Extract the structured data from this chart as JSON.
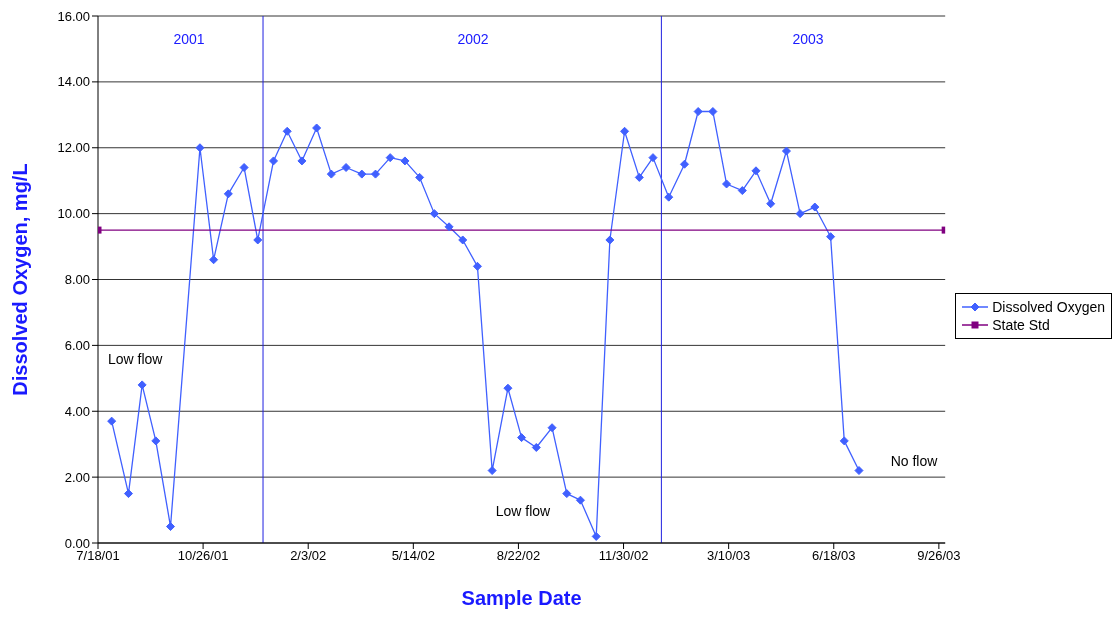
{
  "chart_data": {
    "type": "line",
    "xlabel": "Sample Date",
    "ylabel": "Dissolved Oxygen, mg/L",
    "series": [
      {
        "name": "Dissolved Oxygen",
        "color": "#4060ff",
        "marker": "diamond",
        "x": [
          "2001-07-31",
          "2001-08-16",
          "2001-08-29",
          "2001-09-11",
          "2001-09-25",
          "2001-10-23",
          "2001-11-05",
          "2001-11-19",
          "2001-12-04",
          "2001-12-17",
          "2002-01-01",
          "2002-01-14",
          "2002-01-28",
          "2002-02-11",
          "2002-02-25",
          "2002-03-11",
          "2002-03-26",
          "2002-04-08",
          "2002-04-22",
          "2002-05-06",
          "2002-05-20",
          "2002-06-03",
          "2002-06-17",
          "2002-06-30",
          "2002-07-14",
          "2002-07-28",
          "2002-08-12",
          "2002-08-25",
          "2002-09-08",
          "2002-09-23",
          "2002-10-07",
          "2002-10-20",
          "2002-11-04",
          "2002-11-17",
          "2002-12-01",
          "2002-12-15",
          "2002-12-28",
          "2003-01-12",
          "2003-01-27",
          "2003-02-09",
          "2003-02-23",
          "2003-03-08",
          "2003-03-23",
          "2003-04-05",
          "2003-04-19",
          "2003-05-04",
          "2003-05-17",
          "2003-05-31",
          "2003-06-15",
          "2003-06-28",
          "2003-07-12"
        ],
        "values": [
          3.7,
          1.5,
          4.8,
          3.1,
          0.5,
          12.0,
          8.6,
          10.6,
          11.4,
          9.2,
          11.6,
          12.5,
          11.6,
          12.6,
          11.2,
          11.4,
          11.2,
          11.2,
          11.7,
          11.6,
          11.1,
          10.0,
          9.6,
          9.2,
          8.4,
          2.2,
          4.7,
          3.2,
          2.9,
          3.5,
          1.5,
          1.3,
          0.2,
          9.2,
          12.5,
          11.1,
          11.7,
          10.5,
          11.5,
          13.1,
          13.1,
          10.9,
          10.7,
          11.3,
          10.3,
          11.9,
          10.0,
          10.2,
          9.3,
          3.1,
          2.2
        ]
      },
      {
        "name": "State Std",
        "color": "#800080",
        "marker": "square",
        "x": [
          "2001-07-18",
          "2003-10-02"
        ],
        "values": [
          9.5,
          9.5
        ]
      }
    ],
    "xlim": [
      "2001-07-18",
      "2003-10-02"
    ],
    "xticks": [
      {
        "value": "2001-07-18",
        "label": "7/18/01"
      },
      {
        "value": "2001-10-26",
        "label": "10/26/01"
      },
      {
        "value": "2002-02-03",
        "label": "2/3/02"
      },
      {
        "value": "2002-05-14",
        "label": "5/14/02"
      },
      {
        "value": "2002-08-22",
        "label": "8/22/02"
      },
      {
        "value": "2002-11-30",
        "label": "11/30/02"
      },
      {
        "value": "2003-03-10",
        "label": "3/10/03"
      },
      {
        "value": "2003-06-18",
        "label": "6/18/03"
      },
      {
        "value": "2003-09-26",
        "label": "9/26/03"
      }
    ],
    "ylim": [
      0,
      16
    ],
    "yticks": [
      {
        "value": 0,
        "label": "0.00"
      },
      {
        "value": 2,
        "label": "2.00"
      },
      {
        "value": 4,
        "label": "4.00"
      },
      {
        "value": 6,
        "label": "6.00"
      },
      {
        "value": 8,
        "label": "8.00"
      },
      {
        "value": 10,
        "label": "10.00"
      },
      {
        "value": 12,
        "label": "12.00"
      },
      {
        "value": 14,
        "label": "14.00"
      },
      {
        "value": 16,
        "label": "16.00"
      }
    ],
    "ref_lines": [
      {
        "axis": "x",
        "value": "2001-12-22",
        "color": "#2020e0"
      },
      {
        "axis": "x",
        "value": "2003-01-05",
        "color": "#2020e0"
      }
    ],
    "annotations": [
      "2001",
      "2002",
      "2003",
      "Low flow",
      "Low flow",
      "No flow"
    ],
    "grid": "y",
    "legend": "right",
    "line_style": "solid"
  }
}
